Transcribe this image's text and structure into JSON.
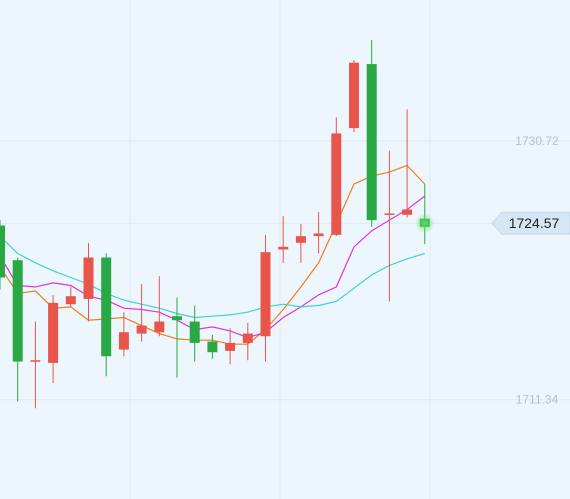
{
  "chart_data": {
    "type": "candlestick",
    "colors": {
      "background": "#eef6fd",
      "gridline": "#dde9f5",
      "up": "#e8554a",
      "down": "#2aa845",
      "ma_short": "#f07f1a",
      "ma_mid": "#e034d8",
      "ma_long": "#3dd2da",
      "axis_text": "#b4c0cc",
      "tag_fill": "#d7e6f5",
      "tag_text": "#222222",
      "current_marker": "#2ecc40"
    },
    "y_axis": {
      "ticks": [
        {
          "value": 1730.72,
          "label": "1730.72"
        },
        {
          "value": 1711.34,
          "label": "1711.34"
        }
      ],
      "ylim": [
        1703.9,
        1741.3
      ]
    },
    "current_price": {
      "value": 1724.57,
      "label": "1724.57"
    },
    "candles": [
      {
        "open": 1724.4,
        "close": 1720.5,
        "high": 1724.8,
        "low": 1719.6
      },
      {
        "open": 1721.8,
        "close": 1714.2,
        "high": 1722.0,
        "low": 1711.2
      },
      {
        "open": 1714.2,
        "close": 1714.3,
        "high": 1717.2,
        "low": 1710.7
      },
      {
        "open": 1714.1,
        "close": 1718.6,
        "high": 1719.2,
        "low": 1712.6
      },
      {
        "open": 1718.5,
        "close": 1719.1,
        "high": 1719.8,
        "low": 1718.3
      },
      {
        "open": 1718.9,
        "close": 1722.0,
        "high": 1723.1,
        "low": 1717.2
      },
      {
        "open": 1722.0,
        "close": 1714.6,
        "high": 1722.3,
        "low": 1713.1
      },
      {
        "open": 1715.1,
        "close": 1716.4,
        "high": 1717.9,
        "low": 1714.6
      },
      {
        "open": 1716.3,
        "close": 1716.9,
        "high": 1720.0,
        "low": 1715.7
      },
      {
        "open": 1716.4,
        "close": 1717.2,
        "high": 1720.6,
        "low": 1716.1
      },
      {
        "open": 1717.6,
        "close": 1717.3,
        "high": 1719.0,
        "low": 1713.0
      },
      {
        "open": 1717.2,
        "close": 1715.6,
        "high": 1718.4,
        "low": 1714.2
      },
      {
        "open": 1715.7,
        "close": 1714.9,
        "high": 1716.2,
        "low": 1714.4
      },
      {
        "open": 1715.0,
        "close": 1715.6,
        "high": 1716.7,
        "low": 1714.0
      },
      {
        "open": 1715.6,
        "close": 1716.3,
        "high": 1717.1,
        "low": 1714.3
      },
      {
        "open": 1716.1,
        "close": 1722.4,
        "high": 1723.7,
        "low": 1714.2
      },
      {
        "open": 1722.6,
        "close": 1722.8,
        "high": 1725.1,
        "low": 1721.6
      },
      {
        "open": 1723.1,
        "close": 1723.6,
        "high": 1724.5,
        "low": 1721.6
      },
      {
        "open": 1723.6,
        "close": 1723.8,
        "high": 1725.4,
        "low": 1722.3
      },
      {
        "open": 1723.7,
        "close": 1731.3,
        "high": 1732.5,
        "low": 1723.6
      },
      {
        "open": 1731.7,
        "close": 1736.6,
        "high": 1736.8,
        "low": 1731.4
      },
      {
        "open": 1736.5,
        "close": 1724.8,
        "high": 1738.3,
        "low": 1724.3
      },
      {
        "open": 1725.2,
        "close": 1725.3,
        "high": 1730.0,
        "low": 1718.7
      },
      {
        "open": 1725.2,
        "close": 1725.6,
        "high": 1733.1,
        "low": 1725.0
      },
      {
        "open": 1724.9,
        "close": 1724.3,
        "high": 1727.5,
        "low": 1723.0
      }
    ],
    "series": [
      {
        "color_key": "ma_short",
        "values": [
          1721.3,
          1719.3,
          1719.5,
          1718.2,
          1718.3,
          1717.3,
          1717.4,
          1717.5,
          1716.9,
          1716.3,
          1715.9,
          1715.8,
          1715.8,
          1715.5,
          1715.5,
          1716.6,
          1718.1,
          1719.8,
          1721.6,
          1724.5,
          1727.5,
          1728.1,
          1728.4,
          1728.9,
          1727.5
        ]
      },
      {
        "color_key": "ma_mid",
        "values": [
          1722.1,
          1719.9,
          1719.8,
          1720.1,
          1719.9,
          1719.1,
          1718.8,
          1718.2,
          1718.1,
          1717.9,
          1717.3,
          1716.6,
          1716.8,
          1716.5,
          1716.0,
          1716.4,
          1717.5,
          1718.3,
          1719.2,
          1719.8,
          1722.8,
          1724.0,
          1724.8,
          1725.6,
          1726.6
        ]
      },
      {
        "color_key": "ma_long",
        "values": [
          1723.6,
          1722.3,
          1721.6,
          1721.0,
          1720.5,
          1720.0,
          1719.3,
          1718.8,
          1718.5,
          1718.2,
          1717.8,
          1717.5,
          1717.6,
          1717.7,
          1717.9,
          1718.3,
          1718.5,
          1718.3,
          1718.4,
          1718.7,
          1719.7,
          1720.7,
          1721.4,
          1721.9,
          1722.3
        ]
      }
    ]
  }
}
